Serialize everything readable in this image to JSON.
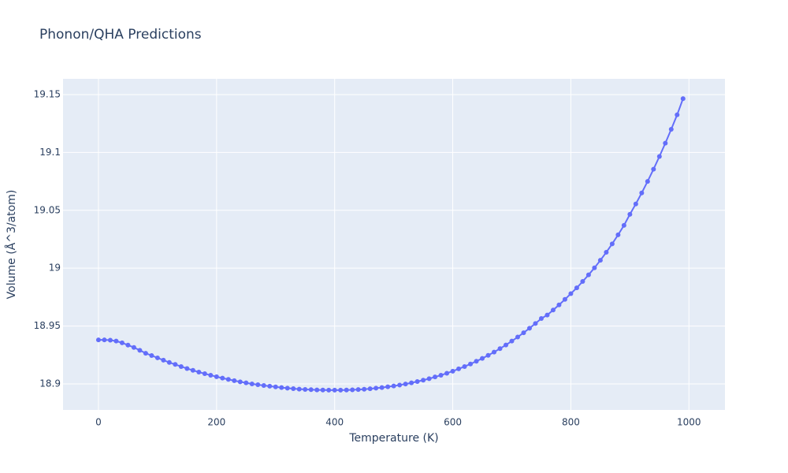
{
  "chart_data": {
    "type": "line",
    "title": "Phonon/QHA Predictions",
    "x_label": "Temperature (K)",
    "y_label": "Volume (Å^3/atom)",
    "x": [
      0,
      10,
      20,
      30,
      40,
      50,
      60,
      70,
      80,
      90,
      100,
      110,
      120,
      130,
      140,
      150,
      160,
      170,
      180,
      190,
      200,
      210,
      220,
      230,
      240,
      250,
      260,
      270,
      280,
      290,
      300,
      310,
      320,
      330,
      340,
      350,
      360,
      370,
      380,
      390,
      400,
      410,
      420,
      430,
      440,
      450,
      460,
      470,
      480,
      490,
      500,
      510,
      520,
      530,
      540,
      550,
      560,
      570,
      580,
      590,
      600,
      610,
      620,
      630,
      640,
      650,
      660,
      670,
      680,
      690,
      700,
      710,
      720,
      730,
      740,
      750,
      760,
      770,
      780,
      790,
      800,
      810,
      820,
      830,
      840,
      850,
      860,
      870,
      880,
      890,
      900,
      910,
      920,
      930,
      940,
      950,
      960,
      970,
      980,
      990
    ],
    "series": [
      {
        "name": "Volume",
        "color": "#636efa",
        "values": [
          18.938,
          18.938,
          18.9378,
          18.937,
          18.9355,
          18.9335,
          18.9315,
          18.929,
          18.9265,
          18.9245,
          18.9225,
          18.9205,
          18.9185,
          18.9168,
          18.915,
          18.9133,
          18.9117,
          18.9102,
          18.9088,
          18.9075,
          18.9062,
          18.905,
          18.9039,
          18.9028,
          18.9018,
          18.9009,
          18.9,
          18.8993,
          18.8986,
          18.898,
          18.8974,
          18.8968,
          18.8963,
          18.8959,
          18.8955,
          18.8952,
          18.895,
          18.8948,
          18.8947,
          18.8946,
          18.8946,
          18.8946,
          18.8947,
          18.8949,
          18.8951,
          18.8954,
          18.8958,
          18.8963,
          18.8968,
          18.8975,
          18.8982,
          18.899,
          18.8999,
          18.9009,
          18.902,
          18.9032,
          18.9045,
          18.906,
          18.9075,
          18.9092,
          18.911,
          18.913,
          18.915,
          18.9172,
          18.9196,
          18.922,
          18.9247,
          18.9275,
          18.9305,
          18.9336,
          18.937,
          18.9405,
          18.9442,
          18.9481,
          18.9522,
          18.9565,
          18.9595,
          18.9638,
          18.9683,
          18.973,
          18.978,
          18.983,
          18.9885,
          18.9942,
          19.0003,
          19.0068,
          19.0137,
          19.021,
          19.0288,
          19.037,
          19.0465,
          19.0555,
          19.065,
          19.075,
          19.0855,
          19.0965,
          19.108,
          19.12,
          19.1325,
          19.1465
        ]
      }
    ],
    "xlim": [
      -60,
      1061
    ],
    "xticks": [
      0,
      200,
      400,
      600,
      800,
      1000
    ],
    "ylim": [
      18.8775,
      19.1636
    ],
    "yticks": [
      18.9,
      18.95,
      19,
      19.05,
      19.1,
      19.15
    ],
    "grid": true,
    "background": "#e5ecf6"
  }
}
